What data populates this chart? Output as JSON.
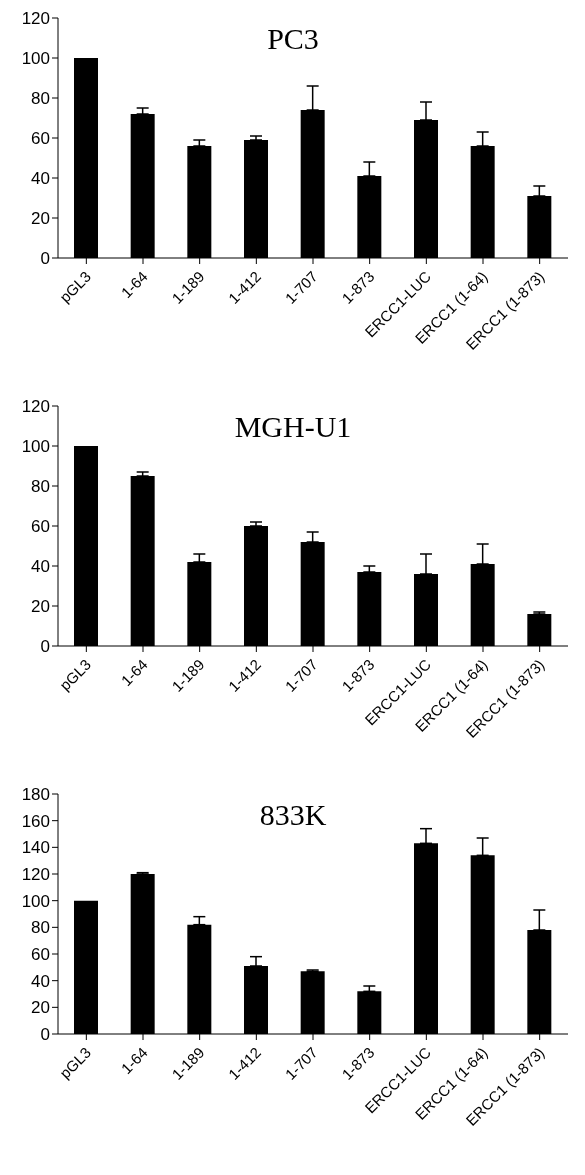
{
  "chart_data": [
    {
      "type": "bar",
      "title": "PC3",
      "categories": [
        "pGL3",
        "1-64",
        "1-189",
        "1-412",
        "1-707",
        "1-873",
        "ERCC1-LUC",
        "ERCC1  (1-64)",
        "ERCC1  (1-873)"
      ],
      "values": [
        100,
        72,
        56,
        59,
        74,
        41,
        69,
        56,
        31
      ],
      "errors": [
        null,
        [
          72,
          75
        ],
        [
          56,
          59
        ],
        [
          59,
          61
        ],
        [
          74,
          86
        ],
        [
          41,
          48
        ],
        [
          69,
          78
        ],
        [
          56,
          63
        ],
        [
          31,
          36
        ]
      ],
      "color": "#000000",
      "ylim": [
        0,
        120
      ],
      "yticks": [
        0,
        20,
        40,
        60,
        80,
        100,
        120
      ],
      "grid": false,
      "legend": false
    },
    {
      "type": "bar",
      "title": "MGH-U1",
      "categories": [
        "pGL3",
        "1-64",
        "1-189",
        "1-412",
        "1-707",
        "1-873",
        "ERCC1-LUC",
        "ERCC1  (1-64)",
        "ERCC1  (1-873)"
      ],
      "values": [
        100,
        85,
        42,
        60,
        52,
        37,
        36,
        41,
        16
      ],
      "errors": [
        null,
        [
          85,
          87
        ],
        [
          42,
          46
        ],
        [
          60,
          62
        ],
        [
          52,
          57
        ],
        [
          37,
          40
        ],
        [
          36,
          46
        ],
        [
          41,
          51
        ],
        [
          16,
          17
        ]
      ],
      "color": "#000000",
      "ylim": [
        0,
        120
      ],
      "yticks": [
        0,
        20,
        40,
        60,
        80,
        100,
        120
      ],
      "grid": false,
      "legend": false
    },
    {
      "type": "bar",
      "title": "833K",
      "categories": [
        "pGL3",
        "1-64",
        "1-189",
        "1-412",
        "1-707",
        "1-873",
        "ERCC1-LUC",
        "ERCC1  (1-64)",
        "ERCC1  (1-873)"
      ],
      "values": [
        100,
        120,
        82,
        51,
        47,
        32,
        143,
        134,
        78
      ],
      "errors": [
        null,
        [
          120,
          121
        ],
        [
          82,
          88
        ],
        [
          51,
          58
        ],
        [
          47,
          48
        ],
        [
          32,
          36
        ],
        [
          143,
          154
        ],
        [
          134,
          147
        ],
        [
          78,
          93
        ]
      ],
      "color": "#000000",
      "ylim": [
        0,
        180
      ],
      "yticks": [
        0,
        20,
        40,
        60,
        80,
        100,
        120,
        140,
        160,
        180
      ],
      "grid": false,
      "legend": false
    }
  ]
}
